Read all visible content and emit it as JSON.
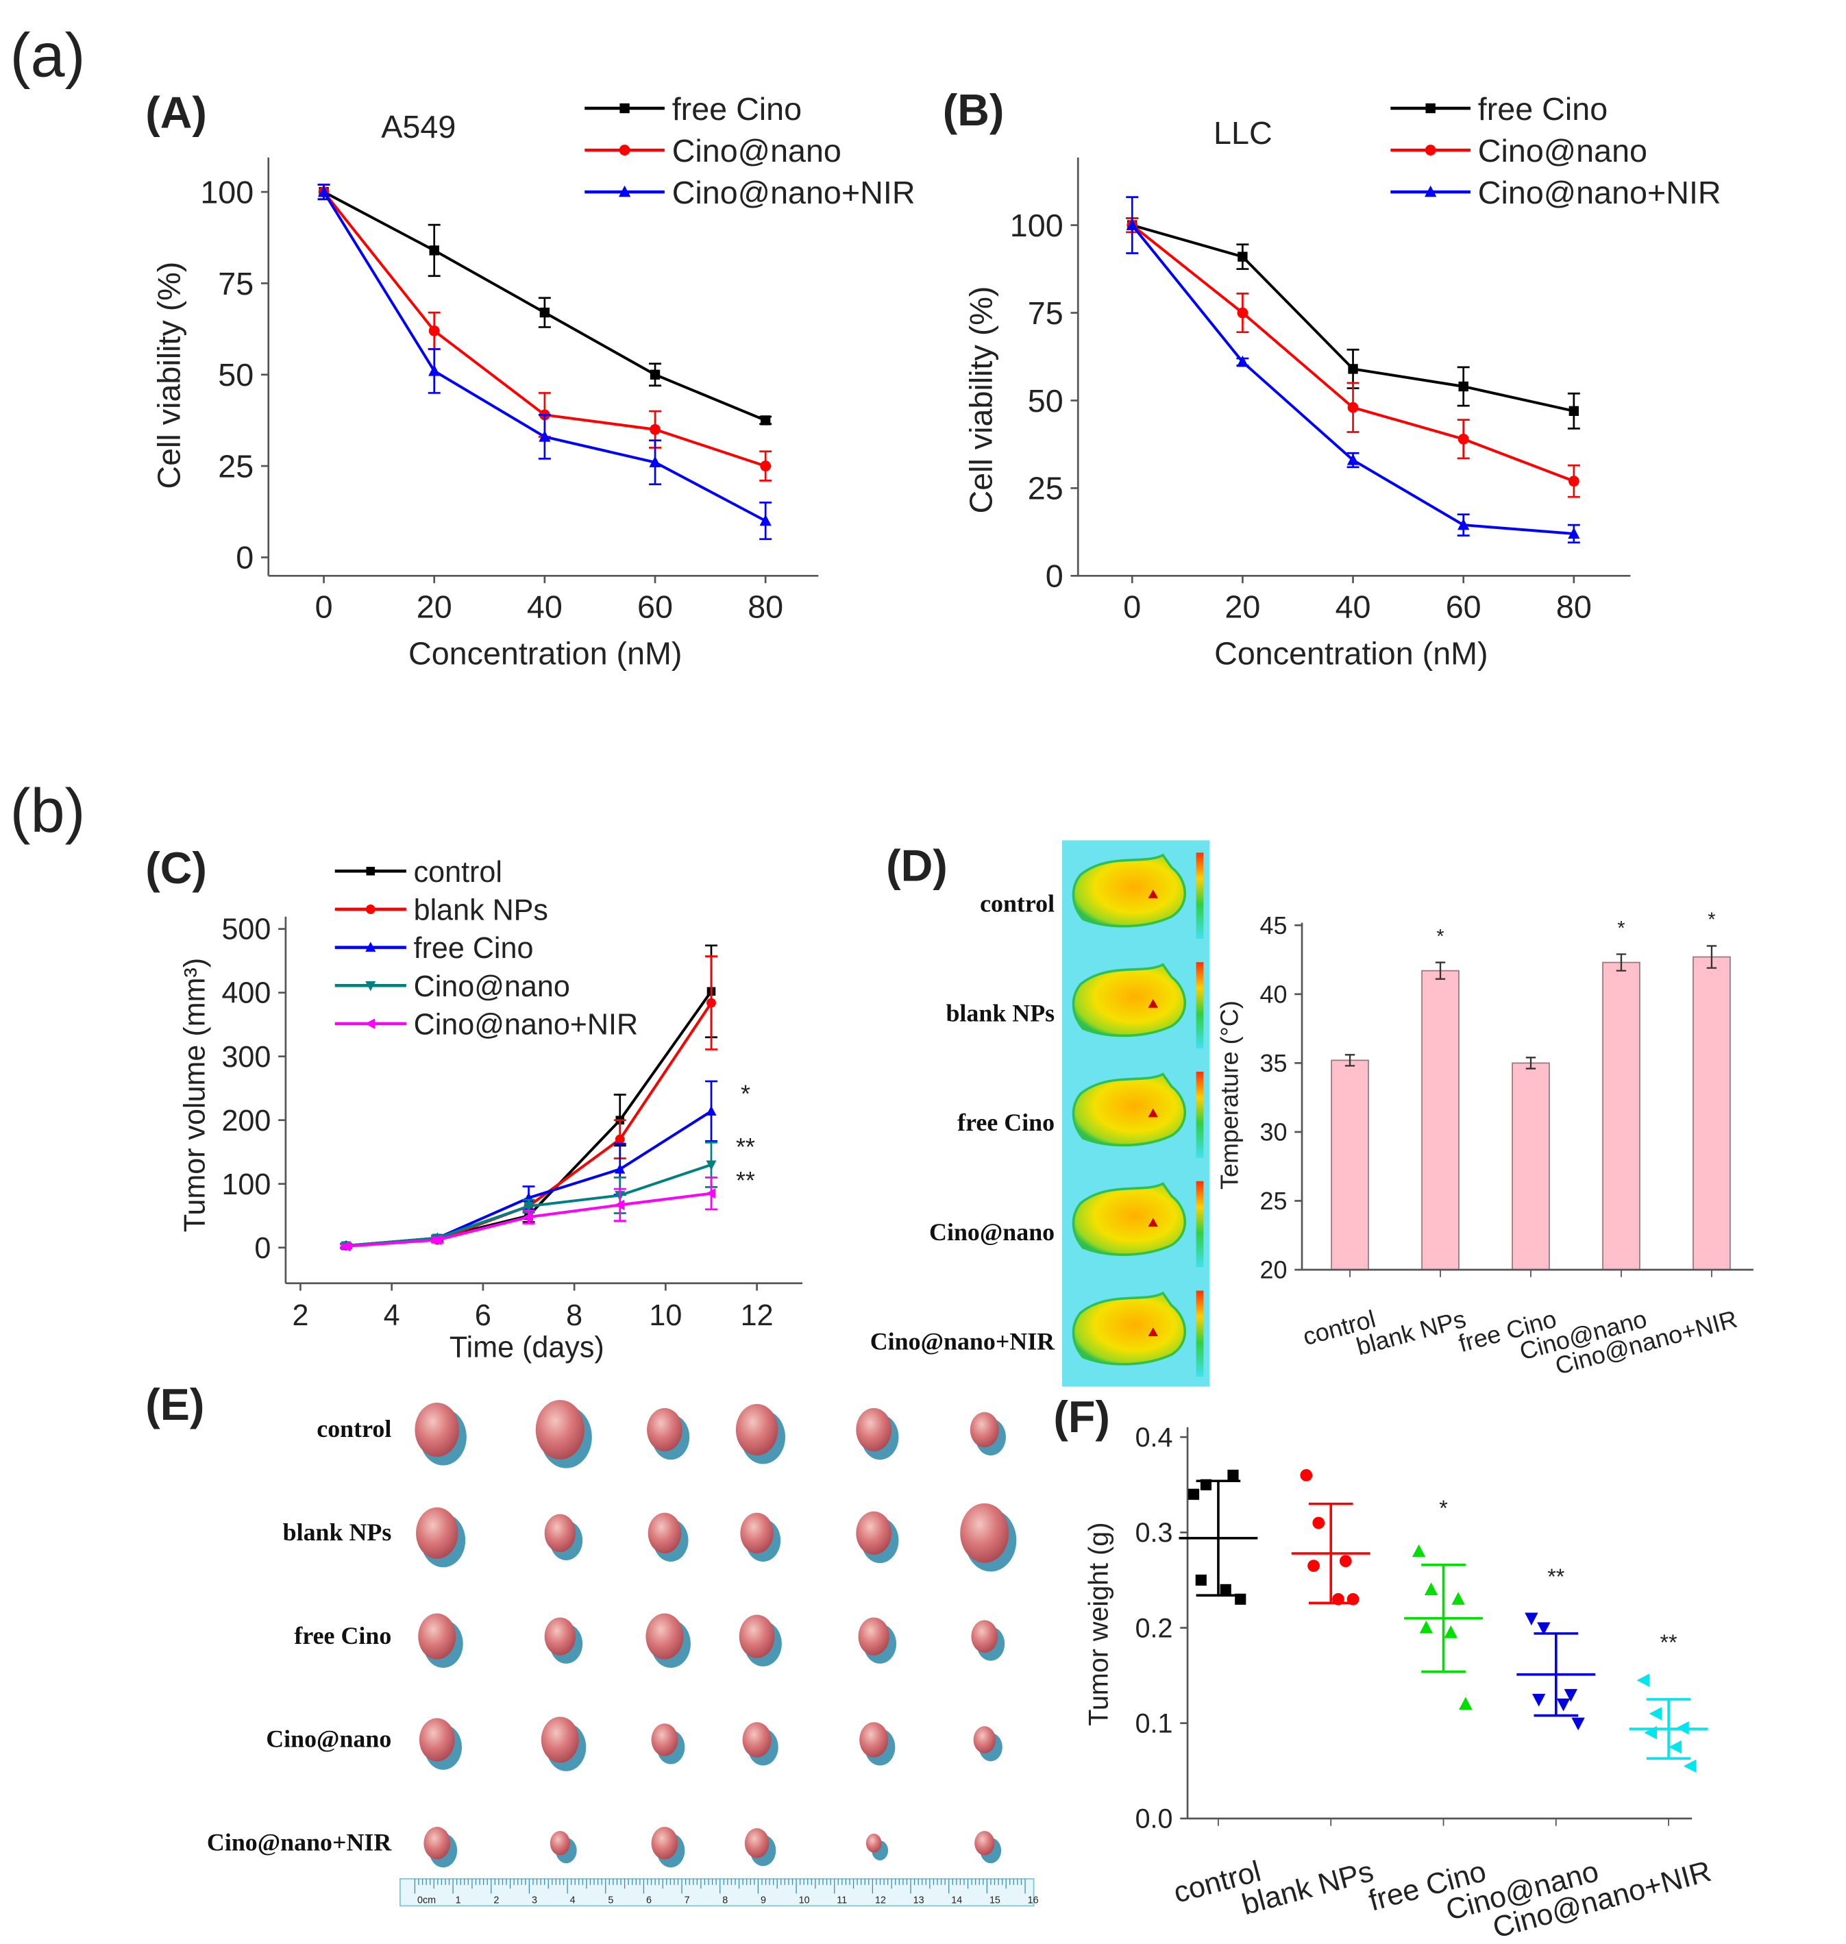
{
  "figure_labels": {
    "a": "(a)",
    "b": "(b)"
  },
  "panels": {
    "A": "(A)",
    "B": "(B)",
    "C": "(C)",
    "D": "(D)",
    "E": "(E)",
    "F": "(F)"
  },
  "thermal_labels": [
    "control",
    "blank NPs",
    "free Cino",
    "Cino@nano",
    "Cino@nano+NIR"
  ],
  "tumor_photo_labels": [
    "control",
    "blank NPs",
    "free Cino",
    "Cino@nano",
    "Cino@nano+NIR"
  ],
  "ruler_labels": [
    "0cm",
    "1",
    "2",
    "3",
    "4",
    "5",
    "6",
    "7",
    "8",
    "9",
    "10",
    "11",
    "12",
    "13",
    "14",
    "15",
    "16"
  ],
  "chart_data": [
    {
      "type": "line",
      "panel": "A",
      "title": "A549",
      "xlabel": "Concentration (nM)",
      "ylabel": "Cell viability (%)",
      "x": [
        0,
        20,
        40,
        60,
        80
      ],
      "xticks": [
        0,
        20,
        40,
        60,
        80
      ],
      "yticks": [
        0,
        25,
        50,
        75,
        100
      ],
      "xlim": [
        -10,
        90
      ],
      "ylim": [
        -5,
        110
      ],
      "legend": "top-right",
      "series": [
        {
          "name": "free Cino",
          "color": "#000000",
          "marker": "square",
          "values": [
            100,
            84,
            67,
            50,
            37.5
          ],
          "errors": [
            2,
            7,
            4,
            3,
            1
          ]
        },
        {
          "name": "Cino@nano",
          "color": "#ff0000",
          "marker": "circle",
          "values": [
            100,
            62,
            39,
            35,
            25
          ],
          "errors": [
            2,
            5,
            6,
            5,
            4
          ]
        },
        {
          "name": "Cino@nano+NIR",
          "color": "#0000ff",
          "marker": "triangle-up",
          "values": [
            100,
            51,
            33,
            26,
            10
          ],
          "errors": [
            2,
            6,
            6,
            6,
            5
          ]
        }
      ]
    },
    {
      "type": "line",
      "panel": "B",
      "title": "LLC",
      "xlabel": "Concentration (nM)",
      "ylabel": "Cell viability (%)",
      "x": [
        0,
        20,
        40,
        60,
        80
      ],
      "xticks": [
        0,
        20,
        40,
        60,
        80
      ],
      "yticks": [
        0,
        25,
        50,
        75,
        100
      ],
      "xlim": [
        -10,
        90
      ],
      "ylim": [
        0,
        120
      ],
      "legend": "top-right",
      "series": [
        {
          "name": "free Cino",
          "color": "#000000",
          "marker": "square",
          "values": [
            100,
            91,
            59,
            54,
            47
          ],
          "errors": [
            2,
            3.5,
            5.5,
            5.5,
            5
          ]
        },
        {
          "name": "Cino@nano",
          "color": "#ff0000",
          "marker": "circle",
          "values": [
            100,
            75,
            48,
            39,
            27
          ],
          "errors": [
            2,
            5.5,
            7,
            5.5,
            4.5
          ]
        },
        {
          "name": "Cino@nano+NIR",
          "color": "#0000ff",
          "marker": "triangle-up",
          "values": [
            100,
            61,
            33,
            14.5,
            12
          ],
          "errors": [
            8,
            1,
            2,
            3,
            2.5
          ]
        }
      ]
    },
    {
      "type": "line",
      "panel": "C",
      "title": "",
      "xlabel": "Time (days)",
      "ylabel": "Tumor volume (mm³)",
      "x": [
        3,
        5,
        7,
        9,
        11
      ],
      "xticks": [
        2,
        4,
        6,
        8,
        10,
        12
      ],
      "yticks": [
        0,
        100,
        200,
        300,
        400,
        500
      ],
      "xlim": [
        2,
        13
      ],
      "ylim": [
        -55,
        550
      ],
      "legend": "top-left",
      "series": [
        {
          "name": "control",
          "color": "#000000",
          "marker": "square",
          "values": [
            3,
            15,
            50,
            200,
            402
          ],
          "errors": [
            3,
            4,
            10,
            40,
            72
          ]
        },
        {
          "name": "blank NPs",
          "color": "#ff0000",
          "marker": "circle",
          "values": [
            3,
            12,
            65,
            170,
            384
          ],
          "errors": [
            3,
            4,
            8,
            30,
            73
          ]
        },
        {
          "name": "free Cino",
          "color": "#0000ff",
          "marker": "triangle-up",
          "values": [
            3,
            15,
            78,
            123,
            214
          ],
          "errors": [
            3,
            4,
            18,
            40,
            47
          ]
        },
        {
          "name": "Cino@nano",
          "color": "#008080",
          "marker": "triangle-down",
          "values": [
            3,
            15,
            65,
            82,
            130
          ],
          "errors": [
            3,
            4,
            10,
            28,
            35
          ]
        },
        {
          "name": "Cino@nano+NIR",
          "color": "#ff00ff",
          "marker": "triangle-left",
          "values": [
            2,
            12,
            48,
            67,
            85
          ],
          "errors": [
            3,
            4,
            10,
            25,
            25
          ]
        }
      ],
      "annotations": [
        "*",
        "**",
        "**"
      ]
    },
    {
      "type": "bar",
      "panel": "D",
      "title": "",
      "xlabel": "",
      "ylabel": "Temperature (°C)",
      "categories": [
        "control",
        "blank NPs",
        "free Cino",
        "Cino@nano",
        "Cino@nano+NIR"
      ],
      "values": [
        35.2,
        41.7,
        35.0,
        42.3,
        42.7
      ],
      "errors": [
        0.4,
        0.6,
        0.4,
        0.6,
        0.8
      ],
      "significance": [
        "",
        "*",
        "",
        "*",
        "*"
      ],
      "yticks": [
        20,
        25,
        30,
        35,
        40,
        45
      ],
      "ylim": [
        20,
        45
      ],
      "bar_color": "#ffc0cb"
    },
    {
      "type": "scatter",
      "panel": "F",
      "title": "",
      "xlabel": "",
      "ylabel": "Tumor weight (g)",
      "categories": [
        "control",
        "blank NPs",
        "free Cino",
        "Cino@nano",
        "Cino@nano+NIR"
      ],
      "yticks": [
        0.0,
        0.1,
        0.2,
        0.3,
        0.4
      ],
      "ylim": [
        0,
        0.4
      ],
      "groups": [
        {
          "color": "#000000",
          "marker": "square",
          "points": [
            0.34,
            0.35,
            0.36,
            0.25,
            0.24,
            0.23
          ],
          "mean": 0.294,
          "sd": 0.06,
          "significance": ""
        },
        {
          "color": "#ff0000",
          "marker": "circle",
          "points": [
            0.36,
            0.31,
            0.27,
            0.265,
            0.23,
            0.23
          ],
          "mean": 0.278,
          "sd": 0.052,
          "significance": ""
        },
        {
          "color": "#00e000",
          "marker": "triangle-up",
          "points": [
            0.28,
            0.24,
            0.23,
            0.2,
            0.195,
            0.12
          ],
          "mean": 0.21,
          "sd": 0.056,
          "significance": "*"
        },
        {
          "color": "#0000e0",
          "marker": "triangle-down",
          "points": [
            0.21,
            0.2,
            0.13,
            0.125,
            0.12,
            0.1
          ],
          "mean": 0.151,
          "sd": 0.043,
          "significance": "**"
        },
        {
          "color": "#00e5ee",
          "marker": "triangle-left",
          "points": [
            0.145,
            0.11,
            0.095,
            0.09,
            0.075,
            0.055
          ],
          "mean": 0.094,
          "sd": 0.031,
          "significance": "**"
        }
      ]
    }
  ]
}
